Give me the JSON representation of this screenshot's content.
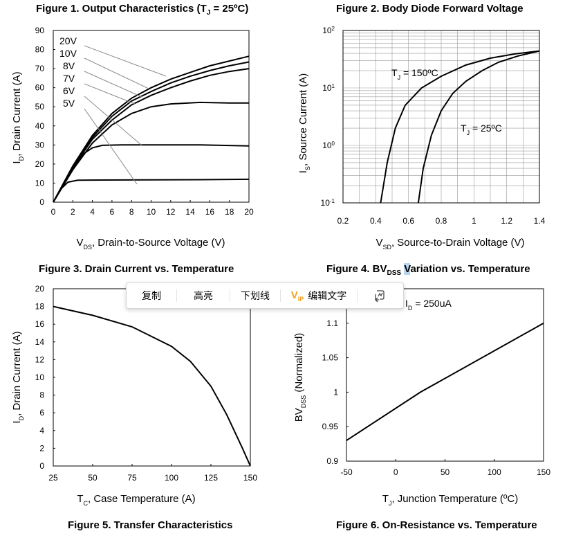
{
  "figures": {
    "f1": {
      "title": "Figure 1. Output Characteristics (T",
      "title_sub": "J",
      "title_end": " = 25ºC)"
    },
    "f2": {
      "title": "Figure 2. Body Diode Forward Voltage"
    },
    "f3": {
      "title": "Figure 3. Drain Current vs. Temperature"
    },
    "f4": {
      "title_a": "Figure 4. BV",
      "title_sub": "DSS",
      "title_space": " ",
      "title_hl": "V",
      "title_b": "ariation vs. Temperature"
    },
    "f5": {
      "title": "Figure 5. Transfer Characteristics"
    },
    "f6": {
      "title": "Figure 6. On-Resistance vs. Temperature"
    }
  },
  "popup": {
    "copy": "复制",
    "highlight": "高亮",
    "underline": "下划线",
    "vip": "V",
    "vip_sub": "IP",
    "edit_text": "编辑文字"
  },
  "chart_data": [
    {
      "type": "line",
      "title": "Figure 1. Output Characteristics (TJ = 25ºC)",
      "xlabel": "VDS, Drain-to-Source Voltage (V)",
      "ylabel": "ID, Drain Current (A)",
      "xlim": [
        0,
        20
      ],
      "ylim": [
        0,
        90
      ],
      "xticks": [
        0,
        2,
        4,
        6,
        8,
        10,
        12,
        14,
        16,
        18,
        20
      ],
      "yticks": [
        0,
        10,
        20,
        30,
        40,
        50,
        60,
        70,
        80,
        90
      ],
      "series": [
        {
          "name": "5V",
          "points": [
            [
              0,
              0
            ],
            [
              0.8,
              7
            ],
            [
              1.5,
              10.5
            ],
            [
              2.5,
              11.5
            ],
            [
              5,
              11.6
            ],
            [
              10,
              11.7
            ],
            [
              15,
              11.8
            ],
            [
              20,
              12
            ]
          ]
        },
        {
          "name": "6V",
          "points": [
            [
              0,
              0
            ],
            [
              1,
              9
            ],
            [
              2,
              18
            ],
            [
              3,
              25
            ],
            [
              4,
              28.5
            ],
            [
              5,
              29.8
            ],
            [
              7,
              30
            ],
            [
              10,
              30
            ],
            [
              15,
              30
            ],
            [
              20,
              29.5
            ]
          ]
        },
        {
          "name": "7V",
          "points": [
            [
              0,
              0
            ],
            [
              2,
              17
            ],
            [
              4,
              31
            ],
            [
              6,
              40.5
            ],
            [
              8,
              46.5
            ],
            [
              10,
              50
            ],
            [
              12,
              51.5
            ],
            [
              15,
              52.3
            ],
            [
              18,
              52
            ],
            [
              20,
              52
            ]
          ]
        },
        {
          "name": "8V",
          "points": [
            [
              0,
              0
            ],
            [
              2,
              18
            ],
            [
              4,
              33
            ],
            [
              6,
              43
            ],
            [
              8,
              51
            ],
            [
              10,
              56
            ],
            [
              12,
              60
            ],
            [
              14,
              63.5
            ],
            [
              16,
              66.5
            ],
            [
              18,
              68.5
            ],
            [
              20,
              70
            ]
          ]
        },
        {
          "name": "10V",
          "points": [
            [
              0,
              0
            ],
            [
              2,
              18.5
            ],
            [
              4,
              34
            ],
            [
              6,
              45
            ],
            [
              8,
              53
            ],
            [
              10,
              58
            ],
            [
              12,
              62.5
            ],
            [
              14,
              66
            ],
            [
              16,
              69
            ],
            [
              18,
              71.5
            ],
            [
              20,
              73.5
            ]
          ]
        },
        {
          "name": "20V",
          "points": [
            [
              0,
              0
            ],
            [
              2,
              19
            ],
            [
              4,
              35
            ],
            [
              6,
              46.5
            ],
            [
              8,
              54.5
            ],
            [
              10,
              60
            ],
            [
              12,
              64.5
            ],
            [
              14,
              68
            ],
            [
              16,
              71.5
            ],
            [
              18,
              74
            ],
            [
              20,
              76.5
            ]
          ]
        }
      ],
      "labels": [
        "20V",
        "10V",
        "8V",
        "7V",
        "6V",
        "5V"
      ]
    },
    {
      "type": "line",
      "title": "Figure 2. Body Diode Forward Voltage",
      "xlabel": "VSD, Source-to-Drain Voltage (V)",
      "ylabel": "IS, Source Current (A)",
      "xlim": [
        0.2,
        1.4
      ],
      "ylim": [
        0.1,
        100
      ],
      "yscale": "log",
      "xticks": [
        "0.2",
        "0.4",
        "0.6",
        "0.8",
        "1",
        "1.2",
        "1.4"
      ],
      "yticks": [
        "10-1",
        "100",
        "101",
        "102"
      ],
      "series": [
        {
          "name": "TJ = 150ºC",
          "points": [
            [
              0.43,
              0.1
            ],
            [
              0.47,
              0.5
            ],
            [
              0.52,
              2
            ],
            [
              0.58,
              5
            ],
            [
              0.68,
              10
            ],
            [
              0.8,
              16
            ],
            [
              0.95,
              25
            ],
            [
              1.1,
              33
            ],
            [
              1.25,
              39
            ],
            [
              1.4,
              44
            ]
          ]
        },
        {
          "name": "TJ = 25ºC",
          "points": [
            [
              0.66,
              0.1
            ],
            [
              0.69,
              0.4
            ],
            [
              0.74,
              1.5
            ],
            [
              0.8,
              4
            ],
            [
              0.87,
              8
            ],
            [
              0.95,
              13
            ],
            [
              1.05,
              20
            ],
            [
              1.15,
              28
            ],
            [
              1.27,
              36
            ],
            [
              1.4,
              44
            ]
          ]
        }
      ],
      "labels": [
        "TJ = 150ºC",
        "TJ = 25ºC"
      ]
    },
    {
      "type": "line",
      "title": "Figure 3. Drain Current vs. Temperature",
      "xlabel": "TC, Case Temperature (A)",
      "ylabel": "ID, Drain Current (A)",
      "xlim": [
        25,
        150
      ],
      "ylim": [
        0,
        20
      ],
      "xticks": [
        25,
        50,
        75,
        100,
        125,
        150
      ],
      "yticks": [
        0,
        2,
        4,
        6,
        8,
        10,
        12,
        14,
        16,
        18,
        20
      ],
      "series": [
        {
          "name": "",
          "points": [
            [
              25,
              18
            ],
            [
              50,
              17
            ],
            [
              75,
              15.7
            ],
            [
              100,
              13.5
            ],
            [
              112,
              11.8
            ],
            [
              125,
              9
            ],
            [
              135,
              5.8
            ],
            [
              145,
              2
            ],
            [
              150,
              0
            ]
          ]
        }
      ]
    },
    {
      "type": "line",
      "title": "Figure 4. BVDSS Variation vs. Temperature",
      "xlabel": "TJ, Junction Temperature (ºC)",
      "ylabel": "BVDSS (Normalized)",
      "xlim": [
        -50,
        150
      ],
      "ylim": [
        0.9,
        1.15
      ],
      "xticks": [
        -50,
        0,
        50,
        100,
        150
      ],
      "yticks": [
        "0.9",
        "0.95",
        "1",
        "1.05",
        "1.1"
      ],
      "series": [
        {
          "name": "ID = 250uA",
          "points": [
            [
              -50,
              0.93
            ],
            [
              25,
              1.0
            ],
            [
              150,
              1.1
            ]
          ]
        }
      ],
      "labels": [
        "ID = 250uA"
      ]
    }
  ]
}
